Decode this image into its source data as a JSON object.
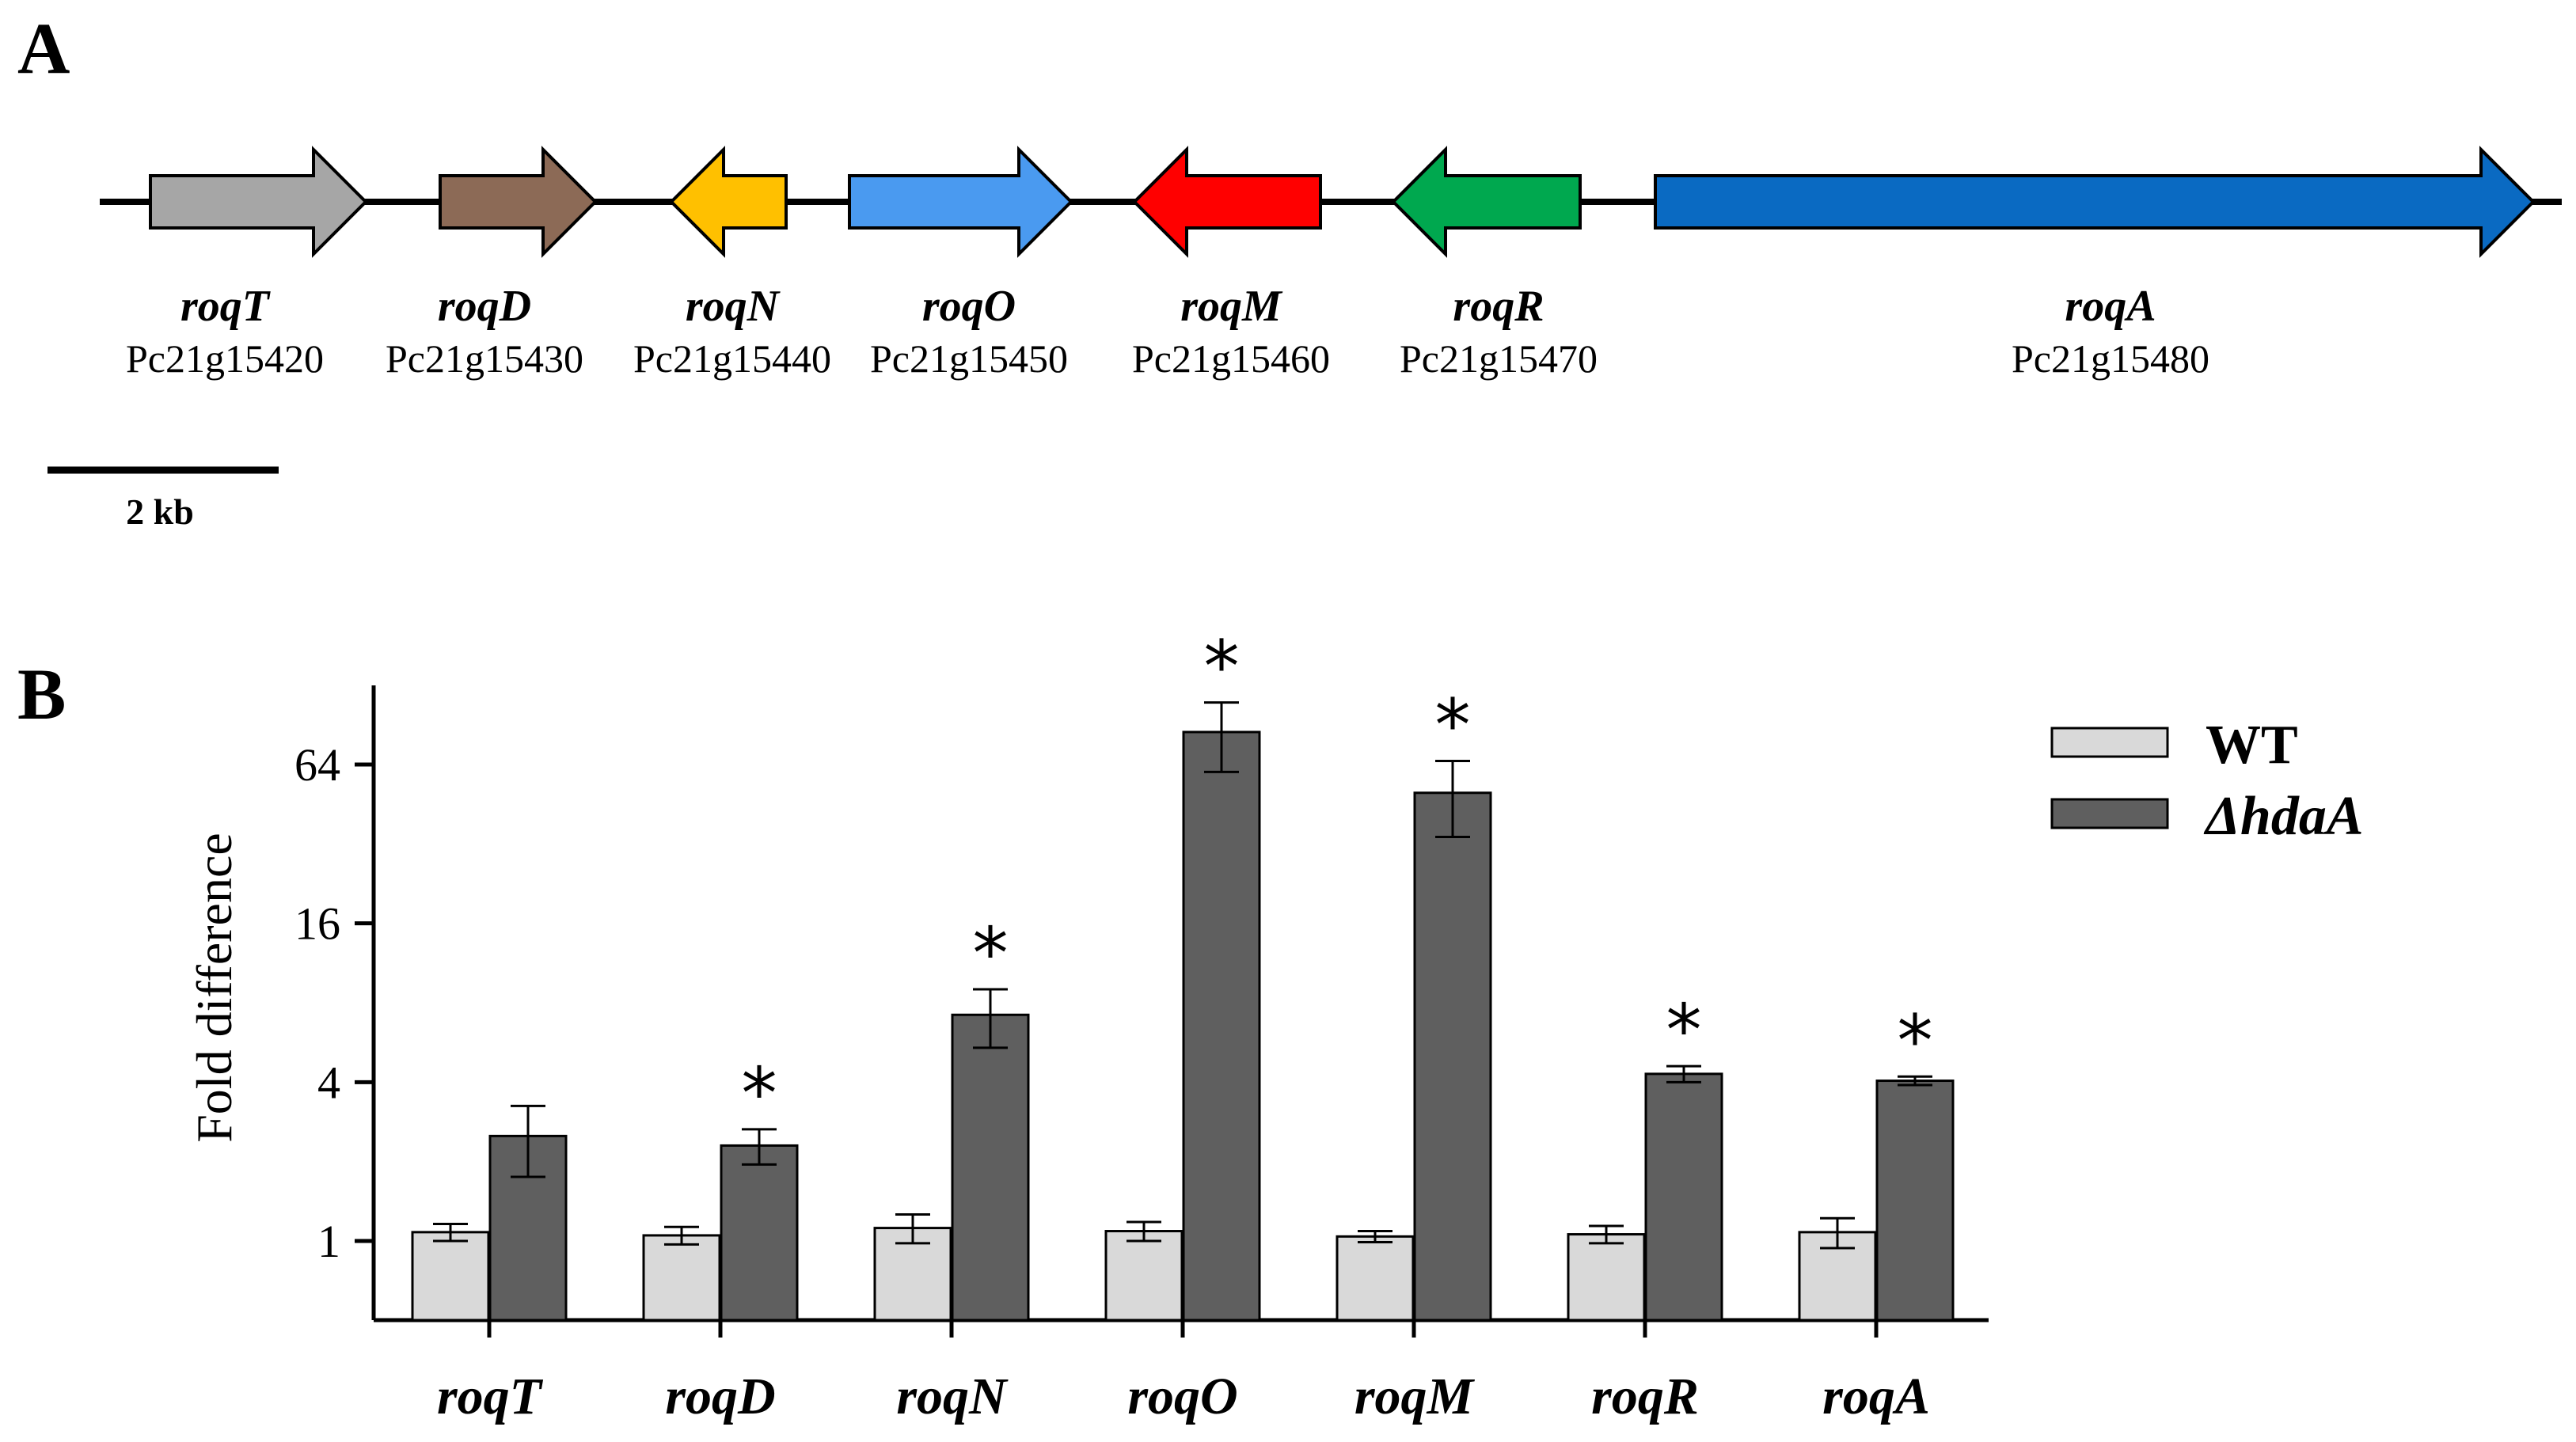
{
  "panelA": {
    "label": "A",
    "genes": [
      {
        "name": "roqT",
        "locus": "Pc21g15420",
        "color": "#a6a6a6",
        "direction": "forward"
      },
      {
        "name": "roqD",
        "locus": "Pc21g15430",
        "color": "#8c6a56",
        "direction": "forward"
      },
      {
        "name": "roqN",
        "locus": "Pc21g15440",
        "color": "#ffc000",
        "direction": "reverse"
      },
      {
        "name": "roqO",
        "locus": "Pc21g15450",
        "color": "#4a9af0",
        "direction": "forward"
      },
      {
        "name": "roqM",
        "locus": "Pc21g15460",
        "color": "#ff0000",
        "direction": "reverse"
      },
      {
        "name": "roqR",
        "locus": "Pc21g15470",
        "color": "#00a84f",
        "direction": "reverse"
      },
      {
        "name": "roqA",
        "locus": "Pc21g15480",
        "color": "#0a6ac2",
        "direction": "forward"
      }
    ],
    "scale_bar": {
      "label": "2 kb"
    }
  },
  "panelB": {
    "label": "B"
  },
  "chart_data": {
    "type": "bar",
    "title": "",
    "xlabel": "",
    "ylabel": "Fold difference",
    "yscale": "log2",
    "ylim": [
      0.5,
      150
    ],
    "yticks": [
      1,
      4,
      16,
      64
    ],
    "ytick_labels": [
      "1",
      "4",
      "16",
      "64"
    ],
    "categories": [
      "roqT",
      "roqD",
      "roqN",
      "roqO",
      "roqM",
      "roqR",
      "roqA"
    ],
    "series": [
      {
        "name": "WT",
        "color": "#d9d9d9",
        "values": [
          1.08,
          1.05,
          1.12,
          1.09,
          1.04,
          1.06,
          1.08
        ],
        "errors": [
          0.08,
          0.08,
          0.14,
          0.09,
          0.05,
          0.08,
          0.14
        ]
      },
      {
        "name": "ΔhdaA",
        "color": "#5f5f5f",
        "values": [
          2.5,
          2.3,
          7.2,
          85,
          50,
          4.3,
          4.05
        ],
        "errors": [
          0.75,
          0.35,
          1.8,
          25,
          16,
          0.3,
          0.15
        ]
      }
    ],
    "significance": [
      "",
      "*",
      "*",
      "*",
      "*",
      "*",
      "*"
    ],
    "legend": {
      "position": "top-right",
      "entries": [
        "WT",
        "ΔhdaA"
      ]
    }
  }
}
